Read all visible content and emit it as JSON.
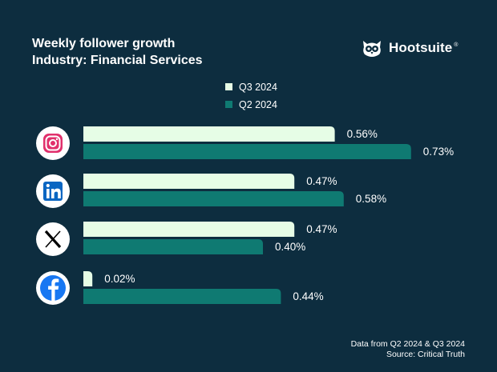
{
  "header": {
    "title_line1": "Weekly follower growth",
    "title_line2": "Industry: Financial Services"
  },
  "brand": {
    "name": "Hootsuite",
    "mark": "®"
  },
  "footer": {
    "line1": "Data from Q2 2024 & Q3 2024",
    "line2": "Source: Critical Truth"
  },
  "colors": {
    "background": "#0d2d3f",
    "q3": "#e6fde6",
    "q2": "#0f7a72",
    "text": "#ffffff"
  },
  "icons": [
    "instagram-icon",
    "linkedin-icon",
    "x-icon",
    "facebook-icon"
  ],
  "chart_data": {
    "type": "bar",
    "orientation": "horizontal",
    "categories": [
      "Instagram",
      "LinkedIn",
      "X",
      "Facebook"
    ],
    "series": [
      {
        "name": "Q3 2024",
        "values": [
          0.56,
          0.47,
          0.47,
          0.02
        ],
        "labels": [
          "0.56%",
          "0.47%",
          "0.47%",
          "0.02%"
        ]
      },
      {
        "name": "Q2 2024",
        "values": [
          0.73,
          0.58,
          0.4,
          0.44
        ],
        "labels": [
          "0.73%",
          "0.58%",
          "0.40%",
          "0.44%"
        ]
      }
    ],
    "unit": "%",
    "legend_position": "top-center",
    "grid": false
  }
}
